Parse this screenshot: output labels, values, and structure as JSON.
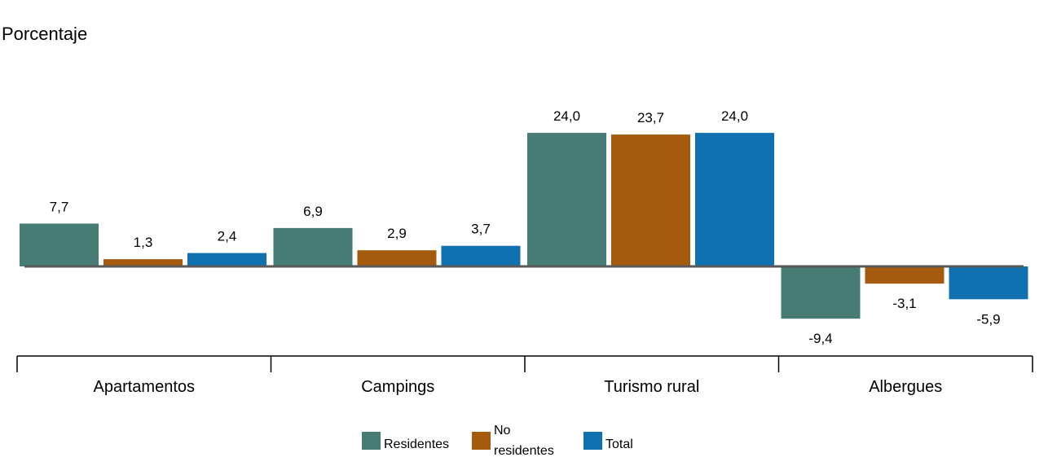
{
  "chart_data": {
    "type": "bar",
    "ylabel": "Porcentaje",
    "categories": [
      "Apartamentos",
      "Campings",
      "Turismo rural",
      "Albergues"
    ],
    "series": [
      {
        "name": "Residentes",
        "color": "#467c74",
        "values": [
          7.7,
          6.9,
          24.0,
          -9.4
        ],
        "labels": [
          "7,7",
          "6,9",
          "24,0",
          "-9,4"
        ]
      },
      {
        "name_lines": [
          "No",
          "residentes"
        ],
        "color": "#a55b0e",
        "values": [
          1.3,
          2.9,
          23.7,
          -3.1
        ],
        "labels": [
          "1,3",
          "2,9",
          "23,7",
          "-3,1"
        ]
      },
      {
        "name": "Total",
        "color": "#0f71af",
        "values": [
          2.4,
          3.7,
          24.0,
          -5.9
        ],
        "labels": [
          "2,4",
          "3,7",
          "24,0",
          "-5,9"
        ]
      }
    ],
    "ylim": [
      -12,
      30
    ],
    "grid": false,
    "legend": "bottom-center"
  }
}
